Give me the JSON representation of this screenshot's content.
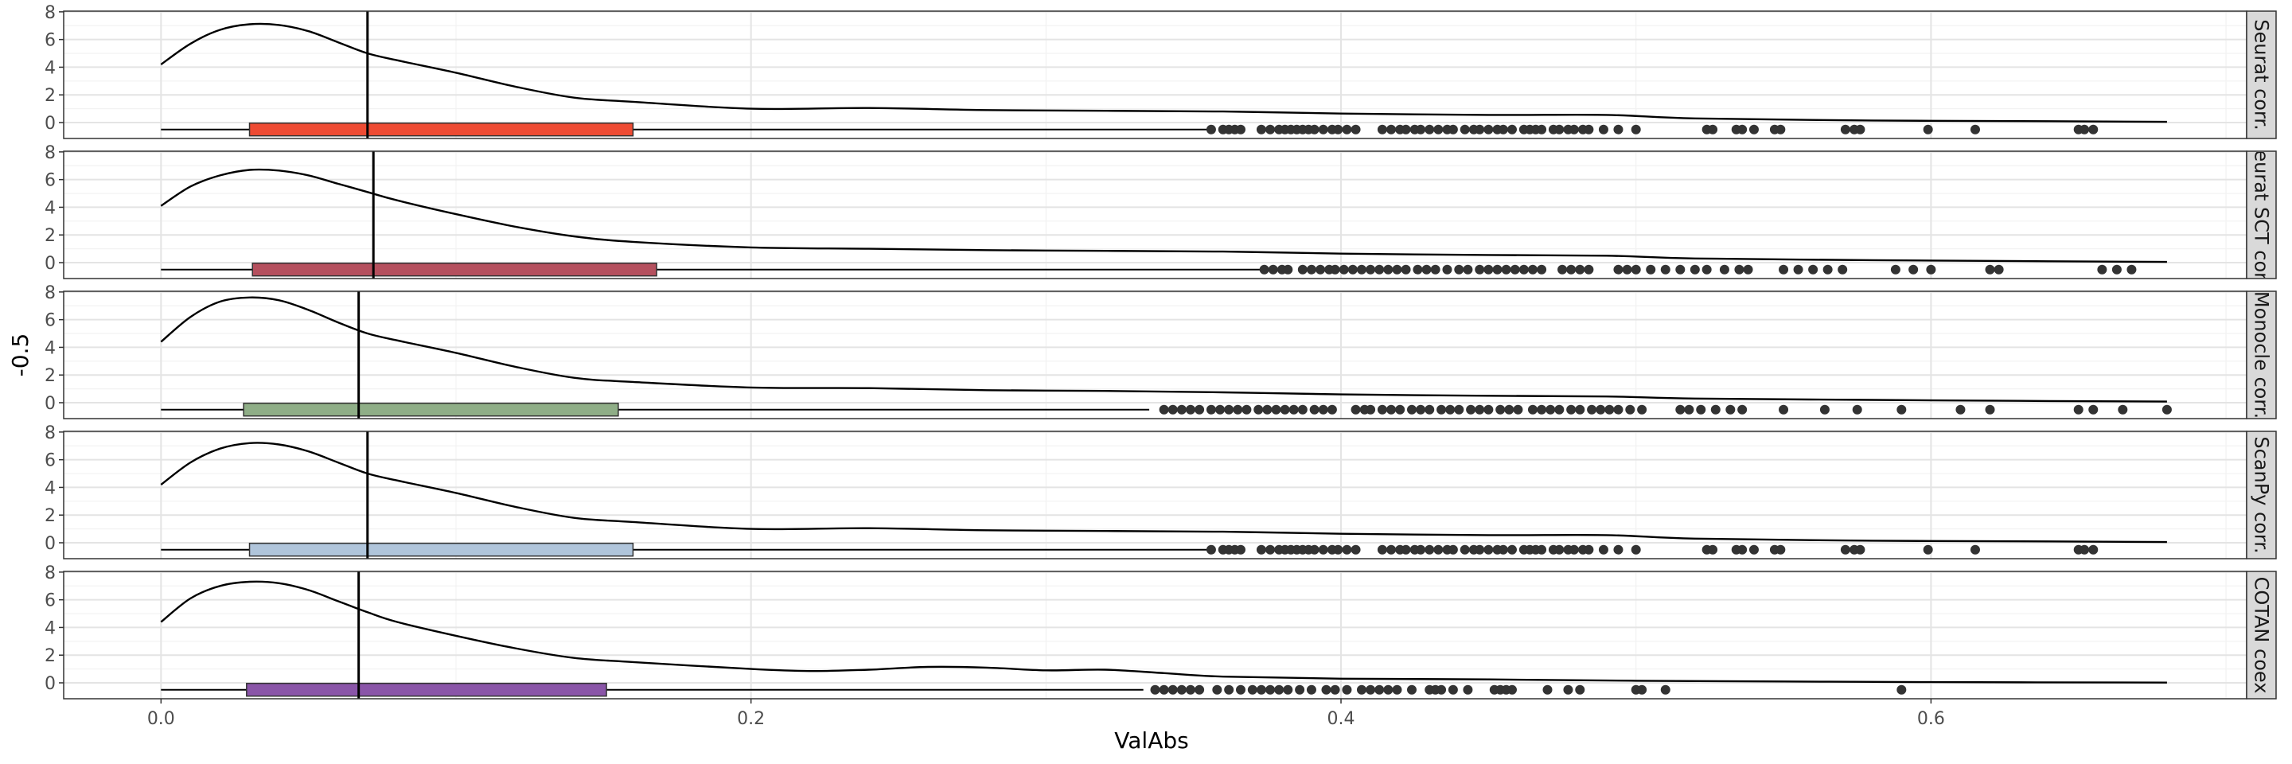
{
  "chart_data": {
    "type": "faceted density + boxplot",
    "xlabel": "ValAbs",
    "ylabel": "-0.5",
    "xlim": [
      -0.033,
      0.707
    ],
    "ylim": [
      -1.15,
      8.05
    ],
    "x_ticks": [
      0.0,
      0.2,
      0.4,
      0.6
    ],
    "x_tick_labels": [
      "0.0",
      "0.2",
      "0.4",
      "0.6"
    ],
    "y_ticks": [
      0,
      2,
      4,
      6,
      8
    ],
    "y_tick_labels": [
      "0",
      "2",
      "4",
      "6",
      "8"
    ],
    "grid": true,
    "facets": [
      {
        "label": "Seurat corr.",
        "color": "#EE4B33",
        "box": {
          "q1": 0.03,
          "median": 0.07,
          "q3": 0.16,
          "whisker_low": 0.0,
          "whisker_high": 0.355
        },
        "median_line": 0.07,
        "density": [
          [
            0.0,
            4.2
          ],
          [
            0.01,
            5.7
          ],
          [
            0.02,
            6.7
          ],
          [
            0.03,
            7.1
          ],
          [
            0.04,
            7.05
          ],
          [
            0.05,
            6.6
          ],
          [
            0.06,
            5.8
          ],
          [
            0.07,
            5.0
          ],
          [
            0.08,
            4.5
          ],
          [
            0.1,
            3.6
          ],
          [
            0.12,
            2.6
          ],
          [
            0.14,
            1.8
          ],
          [
            0.16,
            1.5
          ],
          [
            0.2,
            1.0
          ],
          [
            0.24,
            1.05
          ],
          [
            0.28,
            0.9
          ],
          [
            0.32,
            0.85
          ],
          [
            0.36,
            0.8
          ],
          [
            0.4,
            0.65
          ],
          [
            0.45,
            0.55
          ],
          [
            0.49,
            0.55
          ],
          [
            0.52,
            0.3
          ],
          [
            0.58,
            0.15
          ],
          [
            0.64,
            0.1
          ],
          [
            0.68,
            0.05
          ]
        ],
        "outliers": [
          0.356,
          0.36,
          0.362,
          0.364,
          0.366,
          0.373,
          0.376,
          0.379,
          0.381,
          0.383,
          0.385,
          0.387,
          0.389,
          0.391,
          0.394,
          0.397,
          0.399,
          0.402,
          0.405,
          0.414,
          0.417,
          0.42,
          0.422,
          0.425,
          0.427,
          0.43,
          0.433,
          0.436,
          0.438,
          0.442,
          0.445,
          0.447,
          0.45,
          0.453,
          0.455,
          0.458,
          0.462,
          0.464,
          0.466,
          0.468,
          0.472,
          0.474,
          0.477,
          0.479,
          0.482,
          0.484,
          0.489,
          0.494,
          0.5,
          0.524,
          0.526,
          0.534,
          0.536,
          0.54,
          0.547,
          0.549,
          0.571,
          0.574,
          0.576,
          0.599,
          0.615,
          0.65,
          0.652,
          0.655
        ]
      },
      {
        "label": "Seurat SCT corr.",
        "color": "#B5505E",
        "box": {
          "q1": 0.031,
          "median": 0.072,
          "q3": 0.168,
          "whisker_low": 0.0,
          "whisker_high": 0.373
        },
        "median_line": 0.072,
        "density": [
          [
            0.0,
            4.1
          ],
          [
            0.01,
            5.5
          ],
          [
            0.02,
            6.3
          ],
          [
            0.03,
            6.7
          ],
          [
            0.04,
            6.65
          ],
          [
            0.05,
            6.3
          ],
          [
            0.06,
            5.7
          ],
          [
            0.07,
            5.1
          ],
          [
            0.08,
            4.5
          ],
          [
            0.1,
            3.5
          ],
          [
            0.12,
            2.6
          ],
          [
            0.14,
            1.9
          ],
          [
            0.16,
            1.5
          ],
          [
            0.2,
            1.1
          ],
          [
            0.24,
            1.0
          ],
          [
            0.28,
            0.9
          ],
          [
            0.32,
            0.85
          ],
          [
            0.36,
            0.8
          ],
          [
            0.4,
            0.65
          ],
          [
            0.45,
            0.55
          ],
          [
            0.49,
            0.5
          ],
          [
            0.52,
            0.3
          ],
          [
            0.58,
            0.18
          ],
          [
            0.64,
            0.1
          ],
          [
            0.68,
            0.05
          ]
        ],
        "outliers": [
          0.374,
          0.377,
          0.38,
          0.382,
          0.387,
          0.39,
          0.393,
          0.396,
          0.398,
          0.401,
          0.404,
          0.407,
          0.41,
          0.413,
          0.416,
          0.419,
          0.422,
          0.426,
          0.429,
          0.432,
          0.436,
          0.44,
          0.443,
          0.447,
          0.45,
          0.453,
          0.456,
          0.459,
          0.462,
          0.465,
          0.468,
          0.475,
          0.478,
          0.481,
          0.484,
          0.494,
          0.497,
          0.5,
          0.505,
          0.51,
          0.515,
          0.52,
          0.524,
          0.53,
          0.535,
          0.538,
          0.55,
          0.555,
          0.56,
          0.565,
          0.57,
          0.588,
          0.594,
          0.6,
          0.62,
          0.623,
          0.658,
          0.663,
          0.668
        ]
      },
      {
        "label": "Monocle corr.",
        "color": "#8FAE87",
        "box": {
          "q1": 0.028,
          "median": 0.067,
          "q3": 0.155,
          "whisker_low": 0.0,
          "whisker_high": 0.335
        },
        "median_line": 0.067,
        "density": [
          [
            0.0,
            4.4
          ],
          [
            0.01,
            6.2
          ],
          [
            0.02,
            7.3
          ],
          [
            0.03,
            7.6
          ],
          [
            0.04,
            7.4
          ],
          [
            0.05,
            6.7
          ],
          [
            0.06,
            5.8
          ],
          [
            0.07,
            5.0
          ],
          [
            0.08,
            4.5
          ],
          [
            0.1,
            3.6
          ],
          [
            0.12,
            2.6
          ],
          [
            0.14,
            1.8
          ],
          [
            0.16,
            1.5
          ],
          [
            0.2,
            1.1
          ],
          [
            0.24,
            1.05
          ],
          [
            0.28,
            0.9
          ],
          [
            0.32,
            0.85
          ],
          [
            0.36,
            0.75
          ],
          [
            0.4,
            0.6
          ],
          [
            0.45,
            0.5
          ],
          [
            0.49,
            0.45
          ],
          [
            0.52,
            0.3
          ],
          [
            0.58,
            0.2
          ],
          [
            0.64,
            0.12
          ],
          [
            0.68,
            0.08
          ]
        ],
        "outliers": [
          0.34,
          0.343,
          0.346,
          0.349,
          0.352,
          0.356,
          0.359,
          0.362,
          0.365,
          0.368,
          0.372,
          0.375,
          0.378,
          0.381,
          0.384,
          0.387,
          0.391,
          0.394,
          0.397,
          0.405,
          0.408,
          0.41,
          0.414,
          0.417,
          0.42,
          0.424,
          0.427,
          0.43,
          0.434,
          0.437,
          0.44,
          0.444,
          0.447,
          0.45,
          0.454,
          0.457,
          0.46,
          0.465,
          0.468,
          0.471,
          0.474,
          0.478,
          0.481,
          0.485,
          0.488,
          0.491,
          0.494,
          0.498,
          0.502,
          0.515,
          0.518,
          0.522,
          0.527,
          0.532,
          0.536,
          0.55,
          0.564,
          0.575,
          0.59,
          0.61,
          0.62,
          0.65,
          0.655,
          0.665,
          0.68
        ]
      },
      {
        "label": "ScanPy corr.",
        "color": "#B0C5DB",
        "box": {
          "q1": 0.03,
          "median": 0.07,
          "q3": 0.16,
          "whisker_low": 0.0,
          "whisker_high": 0.355
        },
        "median_line": 0.07,
        "density": [
          [
            0.0,
            4.2
          ],
          [
            0.01,
            5.8
          ],
          [
            0.02,
            6.8
          ],
          [
            0.03,
            7.2
          ],
          [
            0.04,
            7.1
          ],
          [
            0.05,
            6.6
          ],
          [
            0.06,
            5.8
          ],
          [
            0.07,
            5.0
          ],
          [
            0.08,
            4.5
          ],
          [
            0.1,
            3.6
          ],
          [
            0.12,
            2.6
          ],
          [
            0.14,
            1.8
          ],
          [
            0.16,
            1.5
          ],
          [
            0.2,
            1.0
          ],
          [
            0.24,
            1.05
          ],
          [
            0.28,
            0.9
          ],
          [
            0.32,
            0.85
          ],
          [
            0.36,
            0.8
          ],
          [
            0.4,
            0.65
          ],
          [
            0.45,
            0.55
          ],
          [
            0.49,
            0.55
          ],
          [
            0.52,
            0.3
          ],
          [
            0.58,
            0.15
          ],
          [
            0.64,
            0.1
          ],
          [
            0.68,
            0.05
          ]
        ],
        "outliers": [
          0.356,
          0.36,
          0.362,
          0.364,
          0.366,
          0.373,
          0.376,
          0.379,
          0.381,
          0.383,
          0.385,
          0.387,
          0.389,
          0.391,
          0.394,
          0.397,
          0.399,
          0.402,
          0.405,
          0.414,
          0.417,
          0.42,
          0.422,
          0.425,
          0.427,
          0.43,
          0.433,
          0.436,
          0.438,
          0.442,
          0.445,
          0.447,
          0.45,
          0.453,
          0.455,
          0.458,
          0.462,
          0.464,
          0.466,
          0.468,
          0.472,
          0.474,
          0.477,
          0.479,
          0.482,
          0.484,
          0.489,
          0.494,
          0.5,
          0.524,
          0.526,
          0.534,
          0.536,
          0.54,
          0.547,
          0.549,
          0.571,
          0.574,
          0.576,
          0.599,
          0.615,
          0.65,
          0.652,
          0.655
        ]
      },
      {
        "label": "COTAN coex",
        "color": "#8A55A8",
        "box": {
          "q1": 0.029,
          "median": 0.067,
          "q3": 0.151,
          "whisker_low": 0.0,
          "whisker_high": 0.333
        },
        "median_line": 0.067,
        "density": [
          [
            0.0,
            4.4
          ],
          [
            0.01,
            6.1
          ],
          [
            0.02,
            7.0
          ],
          [
            0.03,
            7.3
          ],
          [
            0.04,
            7.2
          ],
          [
            0.05,
            6.7
          ],
          [
            0.06,
            5.9
          ],
          [
            0.07,
            5.1
          ],
          [
            0.08,
            4.4
          ],
          [
            0.1,
            3.4
          ],
          [
            0.12,
            2.5
          ],
          [
            0.14,
            1.8
          ],
          [
            0.16,
            1.5
          ],
          [
            0.2,
            1.0
          ],
          [
            0.22,
            0.85
          ],
          [
            0.24,
            0.95
          ],
          [
            0.26,
            1.15
          ],
          [
            0.28,
            1.1
          ],
          [
            0.3,
            0.9
          ],
          [
            0.32,
            0.95
          ],
          [
            0.34,
            0.7
          ],
          [
            0.36,
            0.45
          ],
          [
            0.4,
            0.3
          ],
          [
            0.45,
            0.25
          ],
          [
            0.5,
            0.15
          ],
          [
            0.55,
            0.1
          ],
          [
            0.6,
            0.05
          ],
          [
            0.68,
            0.02
          ]
        ],
        "outliers": [
          0.337,
          0.34,
          0.343,
          0.346,
          0.349,
          0.352,
          0.358,
          0.362,
          0.366,
          0.37,
          0.373,
          0.376,
          0.379,
          0.382,
          0.386,
          0.39,
          0.395,
          0.398,
          0.402,
          0.407,
          0.41,
          0.413,
          0.416,
          0.419,
          0.424,
          0.43,
          0.432,
          0.434,
          0.438,
          0.443,
          0.452,
          0.454,
          0.456,
          0.458,
          0.47,
          0.477,
          0.481,
          0.5,
          0.502,
          0.51,
          0.59
        ]
      }
    ]
  }
}
